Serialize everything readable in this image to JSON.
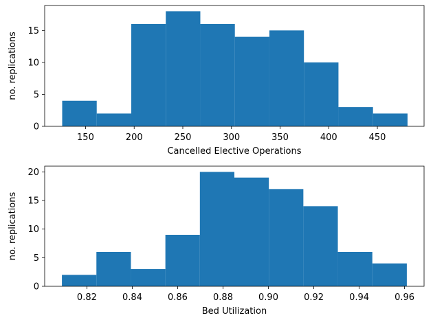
{
  "chart_data": [
    {
      "type": "bar",
      "subtype": "histogram",
      "title": "",
      "xlabel": "Cancelled Elective Operations",
      "ylabel": "no. replications",
      "xlim": [
        108,
        498
      ],
      "ylim": [
        0,
        18.9
      ],
      "bin_edges": [
        126,
        161.5,
        197,
        232.5,
        268,
        303.5,
        339,
        374.5,
        410,
        445.5,
        481
      ],
      "values": [
        4,
        2,
        16,
        18,
        16,
        14,
        15,
        10,
        3,
        2
      ],
      "xticks": [
        150,
        200,
        250,
        300,
        350,
        400,
        450
      ],
      "xtick_labels": [
        "150",
        "200",
        "250",
        "300",
        "350",
        "400",
        "450"
      ],
      "yticks": [
        0,
        5,
        10,
        15
      ],
      "ytick_labels": [
        "0",
        "5",
        "10",
        "15"
      ],
      "bar_color": "#1f77b4",
      "grid": false
    },
    {
      "type": "bar",
      "subtype": "histogram",
      "title": "",
      "xlabel": "Bed Utilization",
      "ylabel": "no. replications",
      "xlim": [
        0.8014,
        0.9686
      ],
      "ylim": [
        0,
        21
      ],
      "bin_edges": [
        0.809,
        0.8242,
        0.8394,
        0.8546,
        0.8698,
        0.885,
        0.9002,
        0.9154,
        0.9306,
        0.9458,
        0.961
      ],
      "values": [
        2,
        6,
        3,
        9,
        20,
        19,
        17,
        14,
        6,
        4
      ],
      "xticks": [
        0.82,
        0.84,
        0.86,
        0.88,
        0.9,
        0.92,
        0.94,
        0.96
      ],
      "xtick_labels": [
        "0.82",
        "0.84",
        "0.86",
        "0.88",
        "0.90",
        "0.92",
        "0.94",
        "0.96"
      ],
      "yticks": [
        0,
        5,
        10,
        15,
        20
      ],
      "ytick_labels": [
        "0",
        "5",
        "10",
        "15",
        "20"
      ],
      "bar_color": "#1f77b4",
      "grid": false
    }
  ]
}
